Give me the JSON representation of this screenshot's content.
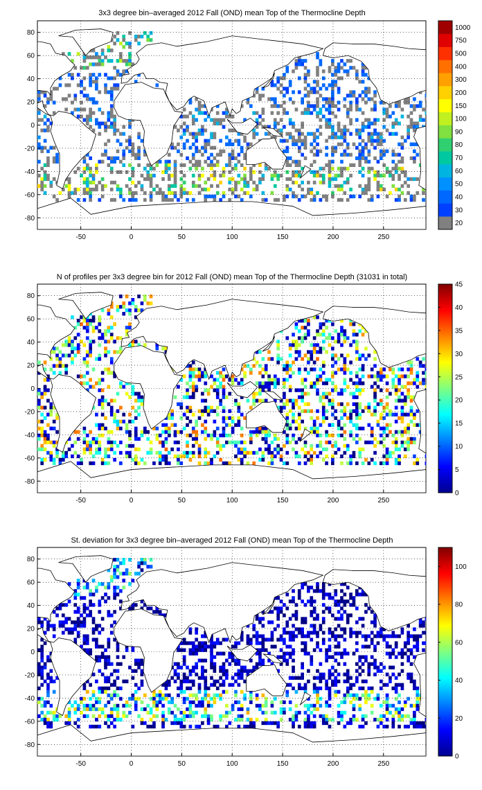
{
  "chart_data": [
    {
      "type": "heatmap",
      "title": "3x3 degree bin–averaged 2012 Fall (OND) mean Top of the Thermocline Depth",
      "x_tick_labels": [
        "-50",
        "0",
        "50",
        "100",
        "150",
        "200",
        "250"
      ],
      "x_ticks": [
        -50,
        0,
        50,
        100,
        150,
        200,
        250
      ],
      "y_tick_labels": [
        "80",
        "60",
        "40",
        "20",
        "0",
        "-20",
        "-40",
        "-60",
        "-80"
      ],
      "y_ticks": [
        80,
        60,
        40,
        20,
        0,
        -20,
        -40,
        -60,
        -80
      ],
      "xlim": [
        -93,
        292
      ],
      "ylim": [
        -90,
        90
      ],
      "grid": true,
      "bin_size_deg": 3,
      "colorbar": {
        "scale": "categorical",
        "tick_labels": [
          "20",
          "30",
          "40",
          "50",
          "60",
          "70",
          "80",
          "90",
          "100",
          "150",
          "200",
          "300",
          "400",
          "500",
          "750",
          "1000"
        ],
        "colors": [
          "#808080",
          "#0040ff",
          "#0068ff",
          "#0090ff",
          "#00b4e0",
          "#00c8a0",
          "#30d070",
          "#80e040",
          "#c0f020",
          "#ffff00",
          "#ffd000",
          "#ffa000",
          "#ff7000",
          "#ff3000",
          "#e00000",
          "#a00000"
        ]
      }
    },
    {
      "type": "heatmap",
      "title": "N of profiles per 3x3 degree bin for 2012 Fall (OND) mean Top of the Thermocline Depth  (31031 in total)",
      "x_tick_labels": [
        "-50",
        "0",
        "50",
        "100",
        "150",
        "200",
        "250"
      ],
      "x_ticks": [
        -50,
        0,
        50,
        100,
        150,
        200,
        250
      ],
      "y_tick_labels": [
        "80",
        "60",
        "40",
        "20",
        "0",
        "-20",
        "-40",
        "-60",
        "-80"
      ],
      "y_ticks": [
        80,
        60,
        40,
        20,
        0,
        -20,
        -40,
        -60,
        -80
      ],
      "xlim": [
        -93,
        292
      ],
      "ylim": [
        -90,
        90
      ],
      "grid": true,
      "bin_size_deg": 3,
      "colorbar": {
        "scale": "linear",
        "min": 0,
        "max": 45,
        "tick_labels": [
          "0",
          "5",
          "10",
          "15",
          "20",
          "25",
          "30",
          "35",
          "40",
          "45"
        ],
        "ticks": [
          0,
          5,
          10,
          15,
          20,
          25,
          30,
          35,
          40,
          45
        ],
        "colormap": "jet"
      }
    },
    {
      "type": "heatmap",
      "title": "St. deviation for 3x3 degree bin–averaged 2012 Fall (OND) mean Top of the Thermocline Depth",
      "x_tick_labels": [
        "-50",
        "0",
        "50",
        "100",
        "150",
        "200",
        "250"
      ],
      "x_ticks": [
        -50,
        0,
        50,
        100,
        150,
        200,
        250
      ],
      "y_tick_labels": [
        "80",
        "60",
        "40",
        "20",
        "0",
        "-20",
        "-40",
        "-60",
        "-80"
      ],
      "y_ticks": [
        80,
        60,
        40,
        20,
        0,
        -20,
        -40,
        -60,
        -80
      ],
      "xlim": [
        -93,
        292
      ],
      "ylim": [
        -90,
        90
      ],
      "grid": true,
      "bin_size_deg": 3,
      "colorbar": {
        "scale": "linear",
        "min": 0,
        "max": 110,
        "tick_labels": [
          "0",
          "20",
          "40",
          "60",
          "80",
          "100"
        ],
        "ticks": [
          0,
          20,
          40,
          60,
          80,
          100
        ],
        "colormap": "jet"
      }
    }
  ]
}
